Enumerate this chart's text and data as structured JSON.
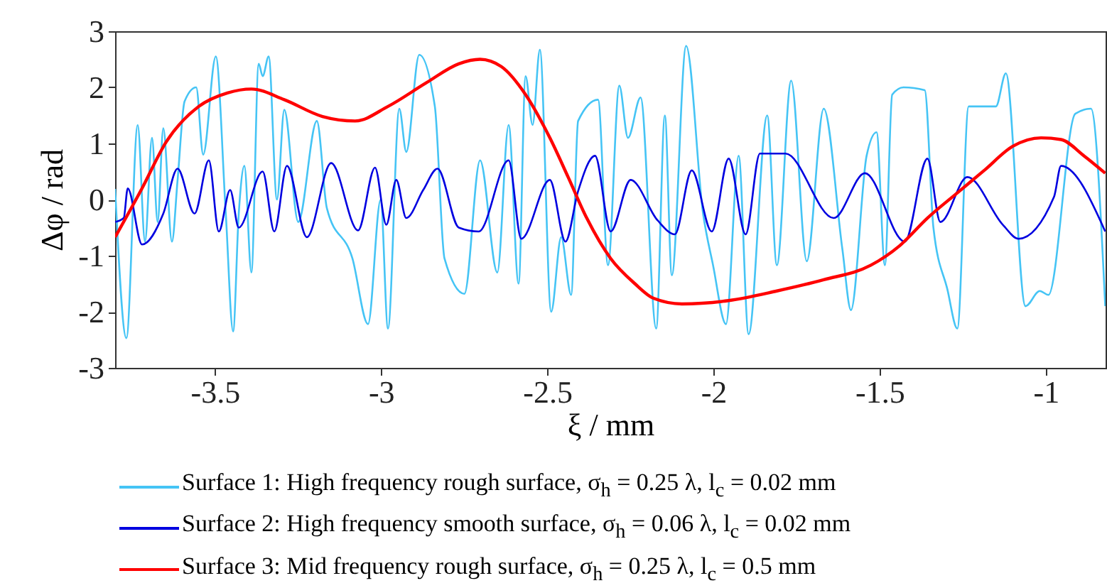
{
  "chart_data": {
    "type": "line",
    "xlabel": "ξ / mm",
    "ylabel": "Δφ / rad",
    "xlim": [
      -3.8,
      -0.82
    ],
    "xticks": [
      -3.5,
      -3,
      -2.5,
      -2,
      -1.5,
      -1
    ],
    "ylim": [
      -3,
      3
    ],
    "yticks": [
      -3,
      -2,
      -1,
      0,
      1,
      2,
      3
    ],
    "legend": "bottom",
    "series": [
      {
        "name": "Surface 1: High frequency rough surface, σ$_{h}$ = 0.25 λ, l$_{c}$ = 0.02 mm",
        "color": "#45c4f5",
        "x": [
          -3.8,
          -3.766,
          -3.732,
          -3.71,
          -3.689,
          -3.672,
          -3.655,
          -3.629,
          -3.612,
          -3.591,
          -3.556,
          -3.535,
          -3.497,
          -3.467,
          -3.445,
          -3.428,
          -3.411,
          -3.39,
          -3.368,
          -3.356,
          -3.338,
          -3.313,
          -3.291,
          -3.249,
          -3.193,
          -3.163,
          -3.086,
          -3.039,
          -3.001,
          -2.979,
          -2.945,
          -2.924,
          -2.885,
          -2.838,
          -2.809,
          -2.749,
          -2.702,
          -2.65,
          -2.616,
          -2.586,
          -2.565,
          -2.544,
          -2.522,
          -2.488,
          -2.458,
          -2.428,
          -2.407,
          -2.347,
          -2.317,
          -2.283,
          -2.257,
          -2.219,
          -2.172,
          -2.146,
          -2.125,
          -2.082,
          -2.031,
          -2.001,
          -1.962,
          -1.924,
          -1.894,
          -1.838,
          -1.809,
          -1.766,
          -1.719,
          -1.668,
          -1.612,
          -1.586,
          -1.539,
          -1.509,
          -1.484,
          -1.462,
          -1.428,
          -1.364,
          -1.338,
          -1.296,
          -1.266,
          -1.232,
          -1.15,
          -1.12,
          -1.061,
          -1.018,
          -0.992,
          -0.911,
          -0.864,
          -0.821
        ],
        "values": [
          0.19,
          -2.47,
          1.33,
          -0.75,
          1.1,
          -0.4,
          1.27,
          -0.75,
          0.35,
          1.75,
          2.0,
          0.8,
          2.55,
          -0.25,
          -2.35,
          -0.25,
          0.6,
          -1.3,
          2.42,
          2.2,
          2.55,
          0.0,
          1.6,
          -0.4,
          1.4,
          -0.15,
          -1.05,
          -2.22,
          0.0,
          -2.3,
          1.62,
          0.85,
          2.58,
          1.66,
          -1.05,
          -1.68,
          0.7,
          -1.3,
          1.33,
          -1.5,
          2.2,
          1.33,
          2.67,
          -2.0,
          -0.67,
          -1.7,
          1.4,
          1.78,
          -1.17,
          2.03,
          1.1,
          1.82,
          -2.3,
          1.5,
          -1.35,
          2.74,
          -0.25,
          -1.17,
          -2.22,
          0.78,
          -2.4,
          1.5,
          -1.17,
          2.12,
          -1.1,
          1.62,
          -0.88,
          -1.97,
          0.78,
          1.2,
          -1.17,
          1.87,
          2.0,
          1.95,
          -0.5,
          -1.6,
          -2.3,
          1.66,
          1.66,
          2.25,
          -1.9,
          -1.63,
          -1.7,
          1.53,
          1.62,
          -1.9
        ]
      },
      {
        "name": "Surface 2: High frequency smooth surface, σ$_{h}$ = 0.06 λ, l$_{c}$ = 0.02 mm",
        "color": "#0000e0",
        "x": [
          -3.8,
          -3.774,
          -3.762,
          -3.719,
          -3.655,
          -3.612,
          -3.561,
          -3.518,
          -3.488,
          -3.454,
          -3.428,
          -3.356,
          -3.321,
          -3.283,
          -3.223,
          -3.15,
          -3.069,
          -3.018,
          -2.984,
          -2.954,
          -2.924,
          -2.873,
          -2.83,
          -2.766,
          -2.706,
          -2.616,
          -2.578,
          -2.492,
          -2.445,
          -2.407,
          -2.356,
          -2.309,
          -2.249,
          -2.168,
          -2.116,
          -2.065,
          -2.005,
          -1.954,
          -1.903,
          -1.86,
          -1.783,
          -1.638,
          -1.544,
          -1.424,
          -1.356,
          -1.317,
          -1.236,
          -1.129,
          -1.082,
          -0.975,
          -0.954,
          -0.821
        ],
        "values": [
          -0.4,
          -0.33,
          0.2,
          -0.8,
          -0.25,
          0.55,
          -0.25,
          0.7,
          -0.57,
          0.17,
          -0.5,
          0.5,
          -0.57,
          0.6,
          -0.67,
          0.65,
          -0.55,
          0.57,
          -0.45,
          0.35,
          -0.33,
          0.17,
          0.55,
          -0.5,
          -0.57,
          0.7,
          -0.7,
          0.35,
          -0.75,
          0.15,
          0.78,
          -0.57,
          0.35,
          -0.37,
          -0.62,
          0.52,
          -0.57,
          0.73,
          -0.62,
          0.82,
          0.82,
          -0.33,
          0.47,
          -0.75,
          0.73,
          -0.4,
          0.4,
          -0.45,
          -0.7,
          0.05,
          0.6,
          -0.57
        ]
      },
      {
        "name": "Surface 3: Mid frequency rough surface, σ$_{h}$ = 0.25 λ, l$_{c}$ = 0.5 mm",
        "color": "#ff0000",
        "x": [
          -3.8,
          -3.719,
          -3.646,
          -3.548,
          -3.462,
          -3.39,
          -3.291,
          -3.176,
          -3.078,
          -2.979,
          -2.864,
          -2.766,
          -2.702,
          -2.638,
          -2.565,
          -2.492,
          -2.437,
          -2.381,
          -2.309,
          -2.236,
          -2.18,
          -2.095,
          -1.954,
          -1.809,
          -1.668,
          -1.526,
          -1.441,
          -1.356,
          -1.27,
          -1.185,
          -1.099,
          -1.014,
          -0.954,
          -0.885,
          -0.821
        ],
        "values": [
          -0.67,
          0.2,
          1.03,
          1.66,
          1.9,
          1.97,
          1.78,
          1.48,
          1.4,
          1.66,
          2.08,
          2.42,
          2.5,
          2.37,
          1.87,
          1.1,
          0.4,
          -0.33,
          -1.05,
          -1.5,
          -1.76,
          -1.86,
          -1.8,
          -1.63,
          -1.43,
          -1.17,
          -0.83,
          -0.33,
          0.1,
          0.52,
          0.95,
          1.1,
          1.07,
          0.78,
          0.47
        ]
      }
    ]
  }
}
